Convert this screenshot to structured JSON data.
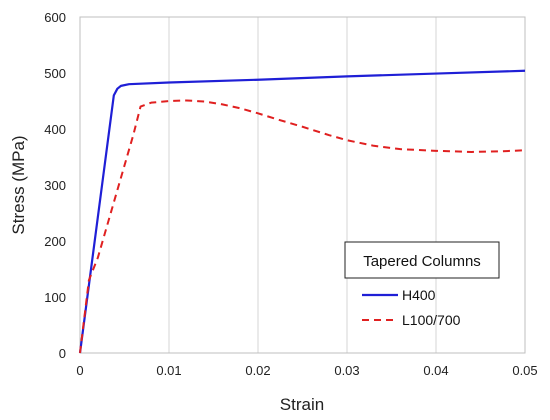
{
  "chart_data": {
    "type": "line",
    "xlabel": "Strain",
    "ylabel": "Stress (MPa)",
    "xlim": [
      0,
      0.05
    ],
    "ylim": [
      0,
      600
    ],
    "xticks": [
      0,
      0.01,
      0.02,
      0.03,
      0.04,
      0.05
    ],
    "xtick_labels": [
      "0",
      "0.01",
      "0.02",
      "0.03",
      "0.04",
      "0.05"
    ],
    "yticks": [
      0,
      100,
      200,
      300,
      400,
      500,
      600
    ],
    "ytick_labels": [
      "0",
      "100",
      "200",
      "300",
      "400",
      "500",
      "600"
    ],
    "grid": "vertical",
    "legend": {
      "title": "Tapered Columns",
      "placement": "lower-right"
    },
    "series": [
      {
        "name": "H400",
        "color": "#1f1fd6",
        "style": "solid",
        "x": [
          0,
          0.0038,
          0.0042,
          0.0046,
          0.0055,
          0.01,
          0.02,
          0.03,
          0.04,
          0.05
        ],
        "y": [
          0,
          460,
          472,
          477,
          480,
          483,
          488,
          494,
          499,
          504
        ]
      },
      {
        "name": "L100/700",
        "color": "#e02020",
        "style": "dashed",
        "x": [
          0,
          0.001,
          0.002,
          0.004,
          0.006,
          0.0068,
          0.008,
          0.01,
          0.012,
          0.014,
          0.016,
          0.018,
          0.02,
          0.022,
          0.025,
          0.028,
          0.03,
          0.033,
          0.036,
          0.04,
          0.044,
          0.047,
          0.05
        ],
        "y": [
          0,
          130,
          170,
          280,
          390,
          440,
          447,
          450,
          451,
          449,
          444,
          437,
          428,
          418,
          404,
          389,
          380,
          370,
          364,
          361,
          359,
          360,
          362
        ]
      }
    ]
  }
}
